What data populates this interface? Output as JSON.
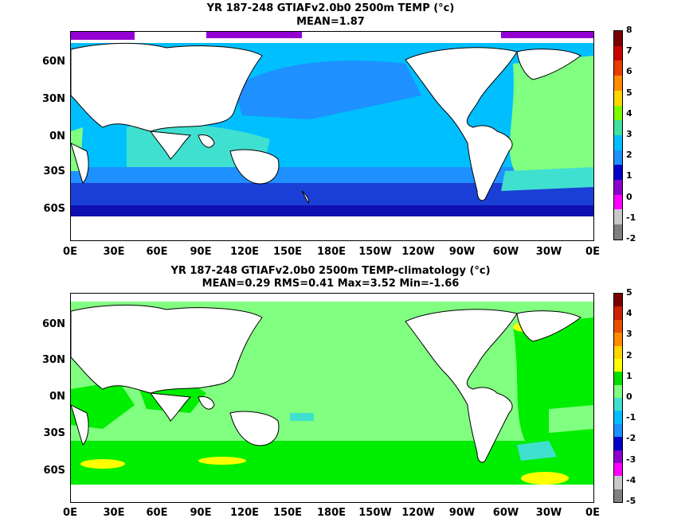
{
  "panels": [
    {
      "title_line1": "YR 187-248 GTIAFv2.0b0 2500m TEMP (°c)",
      "title_line2": "MEAN=1.87",
      "colorbar_labels": [
        "8",
        "7",
        "6",
        "5",
        "4",
        "3",
        "2",
        "1",
        "0",
        "-1",
        "-2"
      ],
      "colorbar_colors": [
        "#7a0000",
        "#cc0000",
        "#e83d00",
        "#ff8c00",
        "#ffd700",
        "#7cfc00",
        "#40e0a0",
        "#00bfff",
        "#1e90ff",
        "#0000cd",
        "#8b00cc",
        "#ff00ff",
        "#c8c8c8",
        "#808080"
      ],
      "field_colors": {
        "deep": "#00bfff",
        "mid": "#40e0d0",
        "warm": "#80ff80",
        "cool": "#1e90ff",
        "cold": "#1a3fd6",
        "coldest": "#1010b0",
        "polar": "#9400d3"
      }
    },
    {
      "title_line1": "YR 187-248 GTIAFv2.0b0 2500m TEMP-climatology (°c)",
      "title_line2": "MEAN=0.29   RMS=0.41   Max=3.52   Min=-1.66",
      "colorbar_labels": [
        "5",
        "4",
        "3",
        "2",
        "1",
        "0",
        "-1",
        "-2",
        "-3",
        "-4",
        "-5"
      ],
      "colorbar_colors": [
        "#7a0000",
        "#cc2000",
        "#e85000",
        "#ff8c00",
        "#ffd700",
        "#ffff00",
        "#00dd00",
        "#80ff80",
        "#40e0d0",
        "#00bfff",
        "#1e90ff",
        "#0000cd",
        "#8b00cc",
        "#ff00ff",
        "#c8c8c8",
        "#808080"
      ],
      "field_colors": {
        "base": "#80ff80",
        "pos": "#00ee00",
        "hot": "#ffff00",
        "neg": "#40e0d0"
      }
    }
  ],
  "axes": {
    "lat_labels": [
      "60N",
      "30N",
      "0N",
      "30S",
      "60S"
    ],
    "lon_labels": [
      "0E",
      "30E",
      "60E",
      "90E",
      "120E",
      "150E",
      "180E",
      "150W",
      "120W",
      "90W",
      "60W",
      "30W",
      "0E"
    ]
  }
}
